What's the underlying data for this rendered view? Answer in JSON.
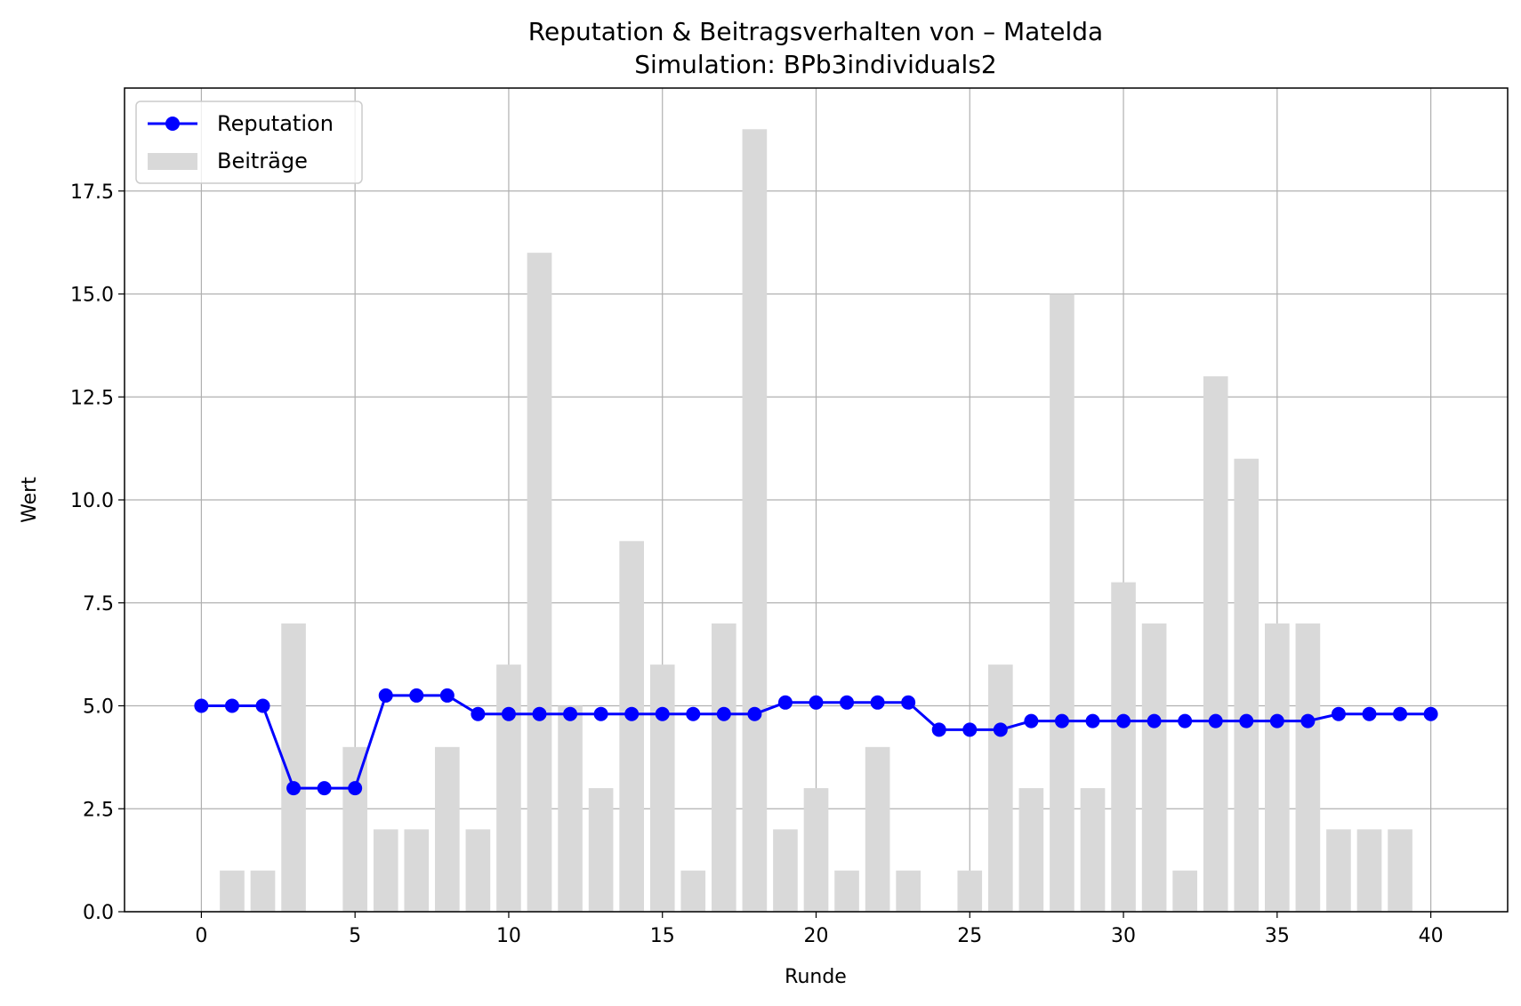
{
  "chart_data": {
    "type": "bar+line",
    "title": "Reputation & Beitragsverhalten von – Matelda",
    "subtitle": "Simulation: BPb3individuals2",
    "xlabel": "Runde",
    "ylabel": "Wert",
    "xlim": [
      -2.5,
      42.5
    ],
    "ylim": [
      0,
      20
    ],
    "xticks": [
      0,
      5,
      10,
      15,
      20,
      25,
      30,
      35,
      40
    ],
    "yticks": [
      0.0,
      2.5,
      5.0,
      7.5,
      10.0,
      12.5,
      15.0,
      17.5
    ],
    "ytick_labels": [
      "0.0",
      "2.5",
      "5.0",
      "7.5",
      "10.0",
      "12.5",
      "15.0",
      "17.5"
    ],
    "grid": true,
    "legend_position": "top-left",
    "series": [
      {
        "name": "Reputation",
        "kind": "line",
        "color": "#0000ff",
        "x": [
          0,
          1,
          2,
          3,
          4,
          5,
          6,
          7,
          8,
          9,
          10,
          11,
          12,
          13,
          14,
          15,
          16,
          17,
          18,
          19,
          20,
          21,
          22,
          23,
          24,
          25,
          26,
          27,
          28,
          29,
          30,
          31,
          32,
          33,
          34,
          35,
          36,
          37,
          38,
          39,
          40
        ],
        "values": [
          5.0,
          5.0,
          5.0,
          3.0,
          3.0,
          3.0,
          5.25,
          5.25,
          5.25,
          4.8,
          4.8,
          4.8,
          4.8,
          4.8,
          4.8,
          4.8,
          4.8,
          4.8,
          4.8,
          5.08,
          5.08,
          5.08,
          5.08,
          5.08,
          4.42,
          4.42,
          4.42,
          4.63,
          4.63,
          4.63,
          4.63,
          4.63,
          4.63,
          4.63,
          4.63,
          4.63,
          4.63,
          4.8,
          4.8,
          4.8,
          4.8
        ]
      },
      {
        "name": "Beiträge",
        "kind": "bar",
        "color": "#d9d9d9",
        "x": [
          1,
          2,
          3,
          4,
          5,
          6,
          7,
          8,
          9,
          10,
          11,
          12,
          13,
          14,
          15,
          16,
          17,
          18,
          19,
          20,
          21,
          22,
          23,
          24,
          25,
          26,
          27,
          28,
          29,
          30,
          31,
          32,
          33,
          34,
          35,
          36,
          37,
          38,
          39
        ],
        "values": [
          1,
          1,
          7,
          0,
          4,
          2,
          2,
          4,
          2,
          6,
          16,
          5,
          3,
          9,
          6,
          1,
          7,
          19,
          2,
          3,
          1,
          4,
          1,
          0,
          1,
          6,
          3,
          15,
          3,
          8,
          7,
          1,
          13,
          11,
          7,
          7,
          2,
          2,
          2
        ]
      }
    ]
  }
}
